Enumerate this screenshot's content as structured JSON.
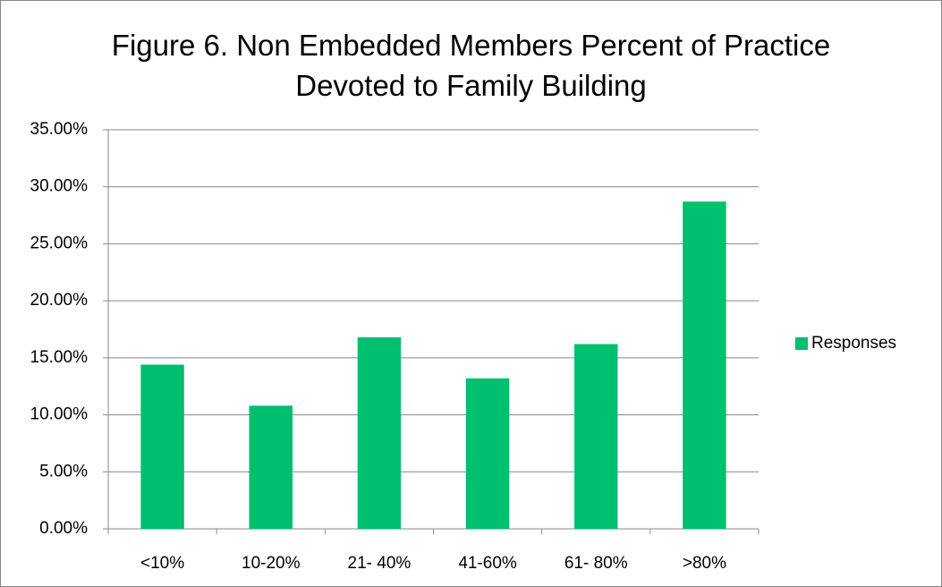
{
  "chart_data": {
    "type": "bar",
    "title": "Figure 6. Non Embedded Members Percent of Practice Devoted to Family Building",
    "categories": [
      "<10%",
      "10-20%",
      "21- 40%",
      "41-60%",
      "61- 80%",
      ">80%"
    ],
    "series": [
      {
        "name": "Responses",
        "color": "#00bf6f",
        "values": [
          14.4,
          10.8,
          16.8,
          13.2,
          16.2,
          28.7
        ]
      }
    ],
    "ylim": [
      0,
      35
    ],
    "yticks": [
      {
        "value": 0,
        "label": "0.00%"
      },
      {
        "value": 5,
        "label": "5.00%"
      },
      {
        "value": 10,
        "label": "10.00%"
      },
      {
        "value": 15,
        "label": "15.00%"
      },
      {
        "value": 20,
        "label": "20.00%"
      },
      {
        "value": 25,
        "label": "25.00%"
      },
      {
        "value": 30,
        "label": "30.00%"
      },
      {
        "value": 35,
        "label": "35.00%"
      }
    ],
    "grid": true,
    "legend": "right"
  }
}
